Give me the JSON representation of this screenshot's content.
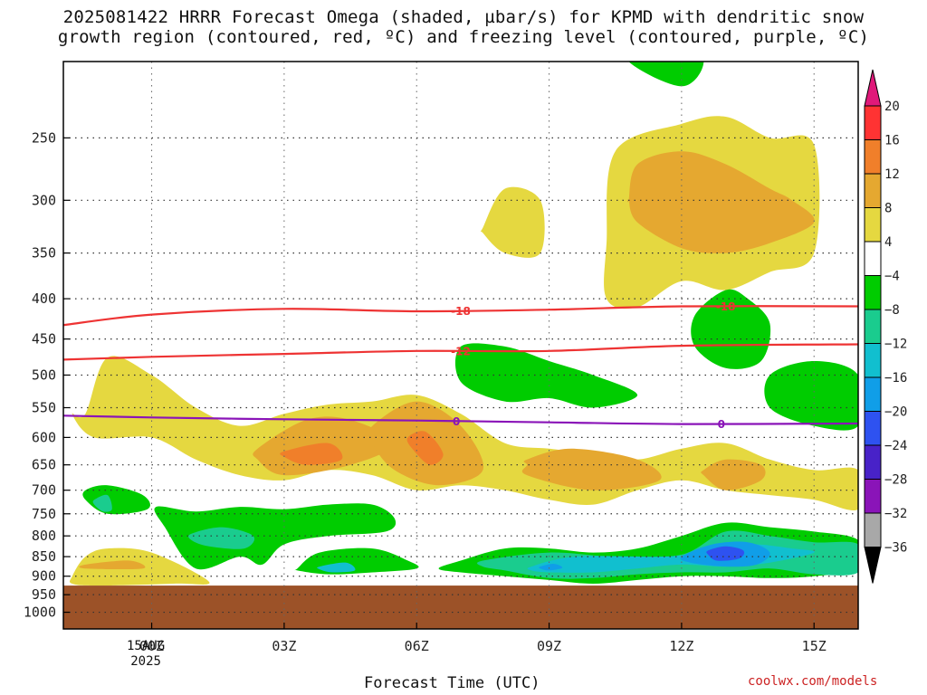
{
  "title_line1": "2025081422 HRRR Forecast Omega (shaded, µbar/s) for KPMD with dendritic snow",
  "title_line2": "growth region (contoured, red, ºC) and freezing level (contoured, purple, ºC)",
  "credit": "coolwx.com/models",
  "chart_data": {
    "type": "heatmap",
    "xlabel": "Forecast Time (UTC)",
    "x_ticks": [
      "00Z",
      "03Z",
      "06Z",
      "09Z",
      "12Z",
      "15Z"
    ],
    "x_tick_hours": [
      0,
      3,
      6,
      9,
      12,
      15
    ],
    "x_range_hours": [
      -2,
      16
    ],
    "date_label": [
      "15AUG",
      "2025"
    ],
    "y_ticks": [
      250,
      300,
      350,
      400,
      450,
      500,
      550,
      600,
      650,
      700,
      750,
      800,
      850,
      900,
      950,
      1000
    ],
    "y_range_mb": [
      200,
      1050
    ],
    "y_scale": "log-pressure (decreasing upward)",
    "grid": "dotted",
    "ground_mb": 925,
    "ground_color": "#9c5228",
    "colorbar": {
      "labels": [
        "20",
        "16",
        "12",
        "8",
        "4",
        "−4",
        "−8",
        "−12",
        "−16",
        "−20",
        "−24",
        "−28",
        "−32",
        "−36"
      ],
      "colors": [
        "#ff3333",
        "#f07f2a",
        "#e5a830",
        "#e5d840",
        "#ffffff",
        "#00cc00",
        "#1acc8e",
        "#11bfcf",
        "#109ee8",
        "#2e52f0",
        "#4822c8",
        "#8a14b8",
        "#a8a8a8"
      ],
      "top_triangle": "#e0197a",
      "bottom_triangle": "#000000"
    },
    "contours": [
      {
        "color": "#ee3333",
        "label": "-18",
        "hours": [
          -2,
          0,
          3,
          6,
          9,
          12,
          16
        ],
        "mb": [
          432,
          419,
          412,
          415,
          413,
          409,
          409
        ],
        "label_at_hours": [
          7,
          13
        ]
      },
      {
        "color": "#ee3333",
        "label": "-12",
        "hours": [
          -2,
          0,
          3,
          6,
          9,
          12,
          16
        ],
        "mb": [
          478,
          474,
          470,
          466,
          466,
          459,
          457
        ],
        "label_at_hours": [
          7
        ]
      },
      {
        "color": "#8a14b8",
        "label": "0",
        "hours": [
          -2,
          0,
          3,
          6,
          9,
          12,
          16
        ],
        "mb": [
          563,
          566,
          569,
          571,
          574,
          577,
          576
        ],
        "label_at_hours": [
          6.9,
          12.9
        ]
      }
    ],
    "omega_regions": [
      {
        "level": 4,
        "hours": [
          -1.5,
          -1,
          0,
          1,
          2,
          3,
          4,
          5,
          6,
          7,
          8,
          9,
          10,
          11,
          12,
          13,
          14,
          15,
          16,
          16,
          15,
          14,
          13,
          12,
          11,
          10,
          9,
          8,
          7,
          6,
          5,
          4,
          3,
          2,
          1,
          0,
          -1.3,
          -1.8
        ],
        "mb": [
          560,
          475,
          500,
          550,
          580,
          560,
          545,
          540,
          530,
          560,
          610,
          620,
          630,
          640,
          620,
          610,
          640,
          660,
          660,
          740,
          720,
          710,
          700,
          680,
          700,
          730,
          720,
          700,
          690,
          700,
          670,
          660,
          680,
          670,
          640,
          600,
          600,
          560
        ]
      },
      {
        "level": 4,
        "hours": [
          -1.8,
          -1.5,
          -1,
          0,
          1.3,
          0.5,
          -1.2,
          -1.8
        ],
        "mb": [
          900,
          850,
          830,
          840,
          915,
          920,
          925,
          920
        ]
      },
      {
        "level": 4,
        "hours": [
          7.5,
          8,
          8.8,
          8.8,
          8,
          7.5
        ],
        "mb": [
          325,
          290,
          300,
          350,
          350,
          330
        ]
      },
      {
        "level": 4,
        "hours": [
          10.3,
          10.5,
          12,
          13,
          14,
          15,
          15,
          14,
          13,
          12,
          11,
          10.3
        ],
        "mb": [
          340,
          260,
          240,
          235,
          250,
          255,
          350,
          370,
          390,
          380,
          410,
          400
        ]
      },
      {
        "level": 8,
        "hours": [
          2.4,
          3.5,
          4.5,
          5.5,
          4.5,
          3,
          2.4
        ],
        "mb": [
          620,
          570,
          570,
          610,
          650,
          670,
          640
        ]
      },
      {
        "level": 8,
        "hours": [
          5,
          6,
          7,
          7.5,
          6.5,
          5.5,
          5
        ],
        "mb": [
          580,
          540,
          580,
          660,
          690,
          660,
          610
        ]
      },
      {
        "level": 8,
        "hours": [
          8.5,
          9.5,
          11,
          11.5,
          10,
          8.5,
          8.5
        ],
        "mb": [
          640,
          620,
          640,
          680,
          700,
          670,
          650
        ]
      },
      {
        "level": 8,
        "hours": [
          10.8,
          11,
          12,
          13,
          14,
          14.5,
          15,
          14,
          13,
          12,
          11,
          10.8
        ],
        "mb": [
          300,
          270,
          260,
          270,
          290,
          300,
          320,
          340,
          350,
          345,
          320,
          300
        ]
      },
      {
        "level": 8,
        "hours": [
          12.5,
          13,
          13.8,
          13.8,
          13,
          12.5
        ],
        "mb": [
          660,
          640,
          650,
          680,
          700,
          670
        ]
      },
      {
        "level": 8,
        "hours": [
          -1.5,
          -0.5,
          -0.2,
          -1.5
        ],
        "mb": [
          870,
          860,
          880,
          880
        ]
      },
      {
        "level": 12,
        "hours": [
          3,
          4,
          4.3,
          3.5,
          3
        ],
        "mb": [
          625,
          610,
          640,
          650,
          635
        ]
      },
      {
        "level": 12,
        "hours": [
          5.8,
          6.2,
          6.6,
          6.3,
          5.9
        ],
        "mb": [
          600,
          590,
          630,
          650,
          620
        ]
      },
      {
        "level": -4,
        "hours": [
          -1.5,
          -1,
          -0.2,
          -0.1,
          -1,
          -1.5
        ],
        "mb": [
          700,
          690,
          710,
          740,
          750,
          720
        ]
      },
      {
        "level": -4,
        "hours": [
          0.1,
          1,
          2,
          3,
          4,
          5,
          5.5,
          5.3,
          4,
          3,
          2.5,
          2,
          1,
          0.3
        ],
        "mb": [
          735,
          745,
          735,
          740,
          730,
          730,
          760,
          790,
          800,
          820,
          870,
          850,
          880,
          780
        ]
      },
      {
        "level": -4,
        "hours": [
          3.3,
          3.8,
          5,
          5.8,
          6,
          5,
          4,
          3.3
        ],
        "mb": [
          880,
          840,
          830,
          860,
          880,
          890,
          895,
          885
        ]
      },
      {
        "level": -4,
        "hours": [
          7,
          8,
          9,
          10,
          11,
          12,
          13,
          14,
          15,
          16,
          16,
          15,
          14,
          13,
          12,
          11,
          10,
          9,
          8,
          7,
          6.5
        ],
        "mb": [
          860,
          830,
          830,
          840,
          830,
          800,
          770,
          780,
          790,
          810,
          880,
          900,
          905,
          900,
          900,
          910,
          920,
          910,
          900,
          890,
          880
        ]
      },
      {
        "level": -4,
        "hours": [
          7,
          8,
          9,
          10,
          11,
          10,
          9,
          8,
          7
        ],
        "mb": [
          460,
          460,
          480,
          500,
          530,
          550,
          535,
          540,
          510
        ]
      },
      {
        "level": -4,
        "hours": [
          12.3,
          13,
          13.5,
          14,
          13.8,
          13,
          12.3
        ],
        "mb": [
          420,
          390,
          400,
          430,
          480,
          490,
          460
        ]
      },
      {
        "level": -4,
        "hours": [
          14,
          15,
          16,
          16,
          15,
          14
        ],
        "mb": [
          500,
          480,
          500,
          580,
          580,
          550
        ]
      },
      {
        "level": -4,
        "hours": [
          10.8,
          12,
          12.5,
          12,
          10.8
        ],
        "mb": [
          185,
          185,
          200,
          215,
          200
        ]
      },
      {
        "level": -8,
        "hours": [
          0.9,
          1.6,
          2.3,
          2.1,
          1.3,
          0.9
        ],
        "mb": [
          795,
          780,
          800,
          830,
          825,
          810
        ]
      },
      {
        "level": -8,
        "hours": [
          7.5,
          9,
          10.5,
          12,
          13,
          14,
          15,
          16,
          16,
          15,
          14,
          13,
          12,
          11,
          10,
          9,
          8,
          7.5
        ],
        "mb": [
          860,
          840,
          850,
          845,
          790,
          800,
          815,
          820,
          890,
          895,
          880,
          890,
          890,
          895,
          905,
          905,
          885,
          875
        ]
      },
      {
        "level": -8,
        "hours": [
          -1.3,
          -1,
          -0.9,
          -1.1,
          -1.3
        ],
        "mb": [
          720,
          710,
          740,
          745,
          730
        ]
      },
      {
        "level": -12,
        "hours": [
          8.6,
          9.6,
          11.5,
          12.5,
          13.5,
          14.5,
          15,
          14,
          13,
          12,
          11,
          10,
          9,
          8.6
        ],
        "mb": [
          875,
          850,
          850,
          840,
          820,
          830,
          840,
          865,
          875,
          870,
          880,
          890,
          890,
          885
        ]
      },
      {
        "level": -12,
        "hours": [
          3.8,
          4.4,
          4.6,
          4.1,
          3.8
        ],
        "mb": [
          875,
          865,
          885,
          890,
          882
        ]
      },
      {
        "level": -16,
        "hours": [
          12,
          12.7,
          13.5,
          14,
          13.7,
          13,
          12.2
        ],
        "mb": [
          850,
          820,
          815,
          840,
          870,
          875,
          865
        ]
      },
      {
        "level": -16,
        "hours": [
          8.8,
          9.1,
          9.3,
          9.0,
          8.8
        ],
        "mb": [
          875,
          868,
          878,
          885,
          880
        ]
      },
      {
        "level": -20,
        "hours": [
          12.6,
          13,
          13.4,
          13.3,
          12.8,
          12.6
        ],
        "mb": [
          835,
          825,
          835,
          855,
          860,
          845
        ]
      }
    ]
  }
}
